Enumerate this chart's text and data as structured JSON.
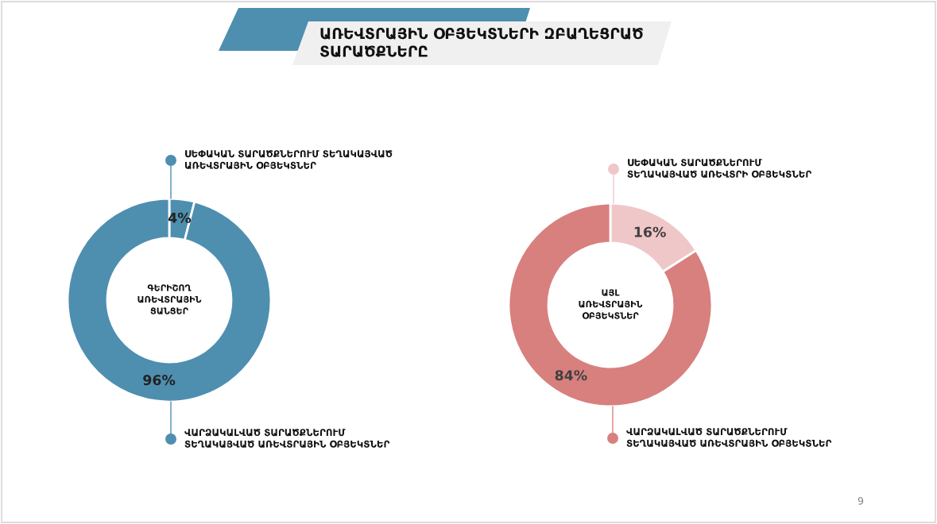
{
  "chart_data": [
    {
      "type": "donut",
      "title": "ԱՌԵՎՏՐԱՅԻՆ ՕԲՅԵԿՏՆԵՐԻ ԶԲԱՂԵՑՐԱԾ\nՏԱՐԱԾՔՆԵՐԸ",
      "categories": [
        "ՍԵՓԱԿԱՆ ՏԱՐԱԾՔՆԵՐՈՒՄ ՏԵՂԱԿԱՅՎԱԾ\nԱՌԵՎՏՐԱՅԻՆ ՕԲՅԵԿՏՆԵՐ",
        "ՎԱՐՁԱԿԱԼՎԱԾ ՏԱՐԱԾՔՆԵՐՈՒՄ\nՏԵՂԱԿԱՅՎԱԾ ԱՌԵՎՏՐԱՅԻՆ ՕԲՅԵԿՏՆԵՐ"
      ],
      "values": [
        4,
        96
      ],
      "colors": [
        "#4e8fb0",
        "#4e8fb0"
      ],
      "value_labels": [
        "4%",
        "96%"
      ],
      "legend": "right",
      "annotations": [
        "ԳԵՐԻՇՈՂ\nԱՌԵՎՏՐԱՅԻՆ\nՑԱՆՑԵՐ"
      ]
    },
    {
      "type": "donut",
      "categories": [
        "ՍԵՓԱԿԱՆ ՏԱՐԱԾՔՆԵՐՈՒՄ\nՏԵՂԱԿԱՅՎԱԾ ԱՌԵՎՏՐԻ ՕԲՅԵԿՏՆԵՐ",
        "ՎԱՐՁԱԿԱԼՎԱԾ ՏԱՐԱԾՔՆԵՐՈՒՄ\nՏԵՂԱԿԱՅՎԱԾ ԱՌԵՎՏՐԱՅԻՆ ՕԲՅԵԿՏՆԵՐ"
      ],
      "values": [
        16,
        84
      ],
      "colors": [
        "#efc7c8",
        "#d8807e"
      ],
      "value_labels": [
        "16%",
        "84%"
      ],
      "legend": "right",
      "annotations": [
        "ԱՅԼ\nԱՌԵՎՏՐԱՅԻՆ\nՕԲՅԵԿՏՆԵՐ",
        "9"
      ]
    }
  ]
}
